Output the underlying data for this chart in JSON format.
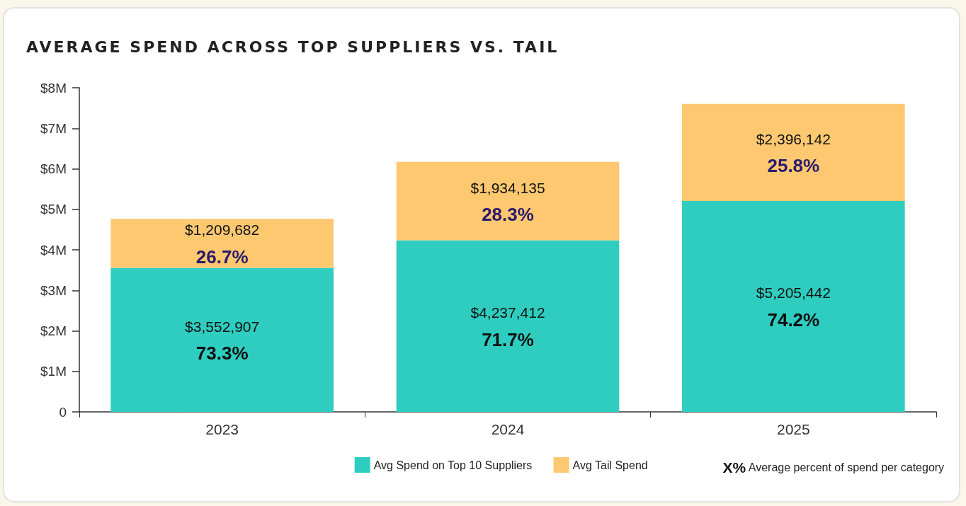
{
  "chart_data": {
    "type": "bar",
    "title": "AVERAGE SPEND ACROSS TOP SUPPLIERS VS. TAIL",
    "categories": [
      "2023",
      "2024",
      "2025"
    ],
    "stacked": true,
    "series": [
      {
        "name": "Avg Spend on Top 10 Suppliers",
        "color": "#2ecdc0",
        "values": [
          3552907,
          4237412,
          5205442
        ],
        "value_labels": [
          "$3,552,907",
          "$4,237,412",
          "$5,205,442"
        ]
      },
      {
        "name": "Avg Tail Spend",
        "color": "#fec870",
        "values": [
          1209682,
          1934135,
          2396142
        ],
        "value_labels": [
          "$1,209,682",
          "$1,934,135",
          "$2,396,142"
        ]
      }
    ],
    "ylim": [
      0,
      8000000
    ],
    "yticks": [
      0,
      {
        "value": 1000000,
        "label": "$1M"
      },
      {
        "value": 2000000,
        "label": "$2M"
      },
      {
        "value": 3000000,
        "label": "$3M"
      },
      {
        "value": 4000000,
        "label": "$4M"
      },
      {
        "value": 5000000,
        "label": "$5M"
      },
      {
        "value": 6000000,
        "label": "$6M"
      },
      {
        "value": 7000000,
        "label": "$7M"
      },
      {
        "value": 8000000,
        "label": "$8M"
      }
    ],
    "grid": false,
    "legend": "bottom right",
    "annotations": [
      "73.3%",
      "71.7%",
      "74.2%",
      "26.7%",
      "28.3%",
      "25.8%",
      "X% Average percent of spend per category"
    ]
  }
}
